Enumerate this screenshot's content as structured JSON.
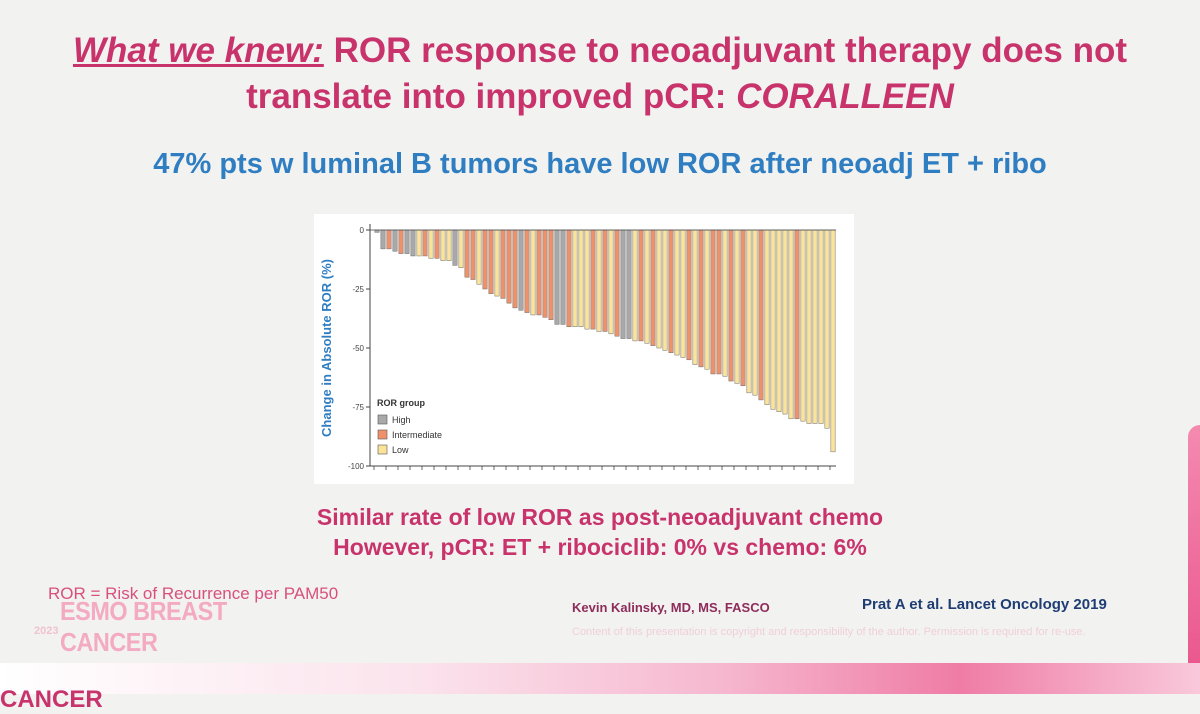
{
  "slide": {
    "title_prefix": "What we knew:",
    "title_main": " ROR response to neoadjuvant therapy does not translate into improved pCR: ",
    "title_study": "CORALLEEN",
    "subtitle": "47% pts w luminal B tumors have low ROR after neoadj ET + ribo",
    "note_line1": "Similar rate of low ROR as post-neoadjuvant chemo",
    "note_line2": "However, pCR: ET + ribociclib: 0% vs chemo: 6%",
    "footnote": "ROR = Risk of Recurrence per PAM50",
    "author": "Kevin Kalinsky, MD, MS, FASCO",
    "citation": "Prat A et al. Lancet Oncology 2019",
    "copyright": "Content of this presentation is copyright and responsibility of the author. Permission is required for re-use.",
    "logo_year": "2023",
    "logo_text": "ESMO BREAST CANCER",
    "bottom_text": "CANCER"
  },
  "colors": {
    "title": "#c8336b",
    "subtitle": "#2f7ec2",
    "high": "#a9a9a9",
    "intermediate": "#f0916a",
    "low": "#fbe39a"
  },
  "chart_data": {
    "type": "bar",
    "ylabel": "Change in Absolute ROR (%)",
    "ylim": [
      -100,
      0
    ],
    "yticks": [
      0,
      -25,
      -50,
      -75,
      -100
    ],
    "legend_title": "ROR group",
    "legend_position": "bottom-left",
    "groups": [
      "High",
      "Intermediate",
      "Low"
    ],
    "values": [
      -1,
      -8,
      -8,
      -9,
      -10,
      -10,
      -11,
      -11,
      -11,
      -12,
      -12,
      -13,
      -13,
      -15,
      -16,
      -20,
      -21,
      -23,
      -25,
      -27,
      -28,
      -29,
      -31,
      -33,
      -34,
      -35,
      -36,
      -36,
      -37,
      -38,
      -40,
      -40,
      -41,
      -41,
      -41,
      -42,
      -42,
      -43,
      -43,
      -44,
      -45,
      -46,
      -46,
      -47,
      -47,
      -48,
      -49,
      -50,
      -51,
      -52,
      -53,
      -54,
      -55,
      -57,
      -58,
      -59,
      -61,
      -61,
      -62,
      -64,
      -65,
      -66,
      -69,
      -70,
      -72,
      -74,
      -76,
      -77,
      -78,
      -80,
      -80,
      -81,
      -82,
      -82,
      -82,
      -84,
      -94
    ],
    "ror_group": [
      "High",
      "High",
      "Intermediate",
      "High",
      "Intermediate",
      "High",
      "High",
      "Low",
      "Intermediate",
      "Low",
      "Intermediate",
      "Low",
      "Low",
      "High",
      "Low",
      "Intermediate",
      "Intermediate",
      "Low",
      "Intermediate",
      "Intermediate",
      "Low",
      "Intermediate",
      "Intermediate",
      "Intermediate",
      "High",
      "Intermediate",
      "Low",
      "Intermediate",
      "Intermediate",
      "Intermediate",
      "High",
      "High",
      "Intermediate",
      "Low",
      "Low",
      "Low",
      "Intermediate",
      "Low",
      "Intermediate",
      "Low",
      "Intermediate",
      "High",
      "High",
      "Low",
      "Intermediate",
      "Low",
      "Intermediate",
      "Low",
      "Low",
      "Intermediate",
      "Low",
      "Low",
      "Intermediate",
      "Low",
      "Intermediate",
      "Low",
      "Intermediate",
      "Intermediate",
      "Low",
      "Intermediate",
      "Low",
      "Intermediate",
      "Low",
      "Low",
      "Intermediate",
      "Low",
      "Low",
      "Low",
      "Low",
      "Low",
      "Intermediate",
      "Low",
      "Low",
      "Low",
      "Low",
      "Low",
      "Low"
    ],
    "grid": false
  }
}
